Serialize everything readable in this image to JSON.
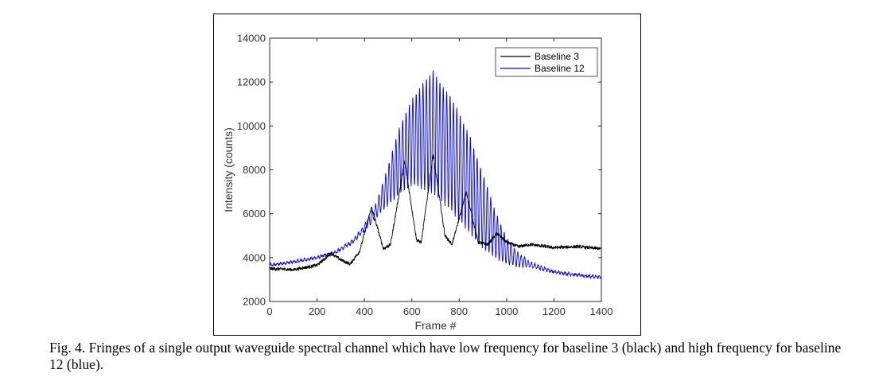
{
  "figure": {
    "caption": "Fig. 4. Fringes of a single output waveguide spectral channel which have low frequency for baseline 3 (black) and high frequency for baseline 12 (blue)."
  },
  "chart_data": {
    "type": "line",
    "xlabel": "Frame #",
    "ylabel": "Intensity (counts)",
    "xlim": [
      0,
      1400
    ],
    "ylim": [
      2000,
      14000
    ],
    "xticks": [
      0,
      200,
      400,
      600,
      800,
      1000,
      1200,
      1400
    ],
    "yticks": [
      2000,
      4000,
      6000,
      8000,
      10000,
      12000,
      14000
    ],
    "grid": false,
    "legend_position": "top-right",
    "series": [
      {
        "name": "Baseline 3",
        "color": "#000000",
        "description_points": {
          "x": [
            0,
            100,
            200,
            260,
            300,
            340,
            380,
            430,
            480,
            510,
            570,
            620,
            640,
            690,
            740,
            770,
            830,
            880,
            920,
            960,
            1000,
            1050,
            1100,
            1200,
            1300,
            1400
          ],
          "y": [
            3500,
            3450,
            3650,
            4200,
            3900,
            3700,
            4300,
            6300,
            4400,
            4600,
            8400,
            4800,
            4700,
            8700,
            5000,
            4600,
            7000,
            4700,
            4600,
            5100,
            4700,
            4500,
            4600,
            4450,
            4500,
            4400
          ]
        }
      },
      {
        "name": "Baseline 12",
        "color": "#0000ff",
        "envelope": {
          "x": [
            0,
            100,
            200,
            280,
            350,
            400,
            450,
            500,
            550,
            600,
            650,
            690,
            720,
            760,
            800,
            850,
            900,
            950,
            1000,
            1050,
            1100,
            1200,
            1300,
            1400
          ],
          "upper": [
            3700,
            3850,
            4050,
            4300,
            4800,
            5500,
            6500,
            8200,
            10000,
            11200,
            12000,
            12500,
            12000,
            11400,
            10600,
            9400,
            7800,
            6200,
            4900,
            4200,
            3800,
            3400,
            3250,
            3150
          ],
          "lower": [
            3600,
            3750,
            3950,
            4200,
            4650,
            5200,
            5800,
            6400,
            6900,
            7300,
            7100,
            6900,
            6600,
            6200,
            5700,
            5000,
            4400,
            4000,
            3700,
            3600,
            3550,
            3300,
            3150,
            3050
          ]
        }
      }
    ]
  }
}
